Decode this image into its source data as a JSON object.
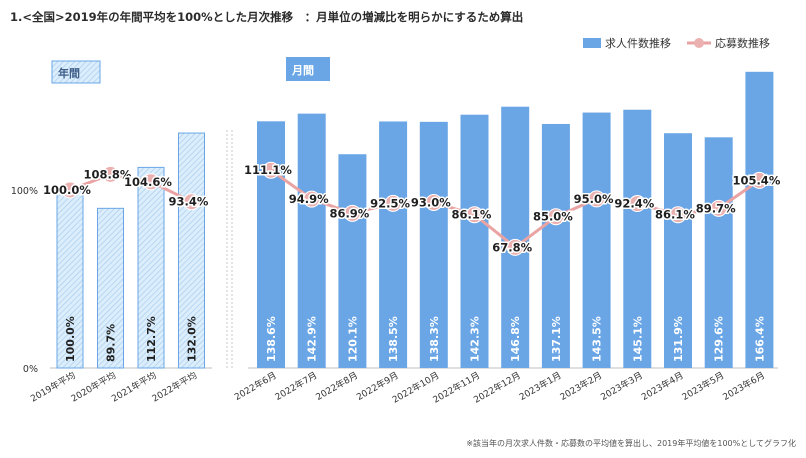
{
  "chart_data": {
    "type": "bar",
    "title": "1.<全国>2019年の年間平均を100%とした月次推移　：月単位の増減比を明らかにするため算出",
    "footnote": "※該当年の月次求人件数・応募数の平均値を算出し、2019年平均値を100%としてグラフ化",
    "panel_labels": {
      "annual": "年間",
      "monthly": "月間"
    },
    "legend": [
      {
        "name": "求人件数推移",
        "kind": "bar",
        "color": "#6aa6e6"
      },
      {
        "name": "応募数推移",
        "kind": "line",
        "color": "#f0a8a8"
      }
    ],
    "legend_placement": "top-right",
    "y_ticks": [
      {
        "value": 0,
        "label": "0%"
      },
      {
        "value": 100,
        "label": "100%"
      }
    ],
    "ylim": [
      0,
      166.4
    ],
    "grid": false,
    "colors": {
      "bar_monthly": "#6aa6e6",
      "bar_annual_fill": "#dceefb",
      "bar_annual_stroke": "#6aa6e6",
      "line": "#eaa3a3",
      "marker": "#ebb0b0"
    },
    "annual": {
      "categories": [
        "2019年平均",
        "2020年平均",
        "2021年平均",
        "2022年平均"
      ],
      "job_listings": [
        100.0,
        89.7,
        112.7,
        132.0
      ],
      "job_labels": [
        "100.0%",
        "89.7%",
        "112.7%",
        "132.0%"
      ],
      "applications": [
        100.0,
        108.8,
        104.6,
        93.4
      ],
      "app_labels": [
        "100.0%",
        "108.8%",
        "104.6%",
        "93.4%"
      ]
    },
    "monthly": {
      "categories": [
        "2022年6月",
        "2022年7月",
        "2022年8月",
        "2022年9月",
        "2022年10月",
        "2022年11月",
        "2022年12月",
        "2023年1月",
        "2023年2月",
        "2023年3月",
        "2023年4月",
        "2023年5月",
        "2023年6月"
      ],
      "job_listings": [
        138.6,
        142.9,
        120.1,
        138.5,
        138.3,
        142.3,
        146.8,
        137.1,
        143.5,
        145.1,
        131.9,
        129.6,
        166.4
      ],
      "job_labels": [
        "138.6%",
        "142.9%",
        "120.1%",
        "138.5%",
        "138.3%",
        "142.3%",
        "146.8%",
        "137.1%",
        "143.5%",
        "145.1%",
        "131.9%",
        "129.6%",
        "166.4%"
      ],
      "applications": [
        111.1,
        94.9,
        86.9,
        92.5,
        93.0,
        86.1,
        67.8,
        85.0,
        95.0,
        92.4,
        86.1,
        89.7,
        105.4
      ],
      "app_labels": [
        "111.1%",
        "94.9%",
        "86.9%",
        "92.5%",
        "93.0%",
        "86.1%",
        "67.8%",
        "85.0%",
        "95.0%",
        "92.4%",
        "86.1%",
        "89.7%",
        "105.4%"
      ]
    }
  }
}
